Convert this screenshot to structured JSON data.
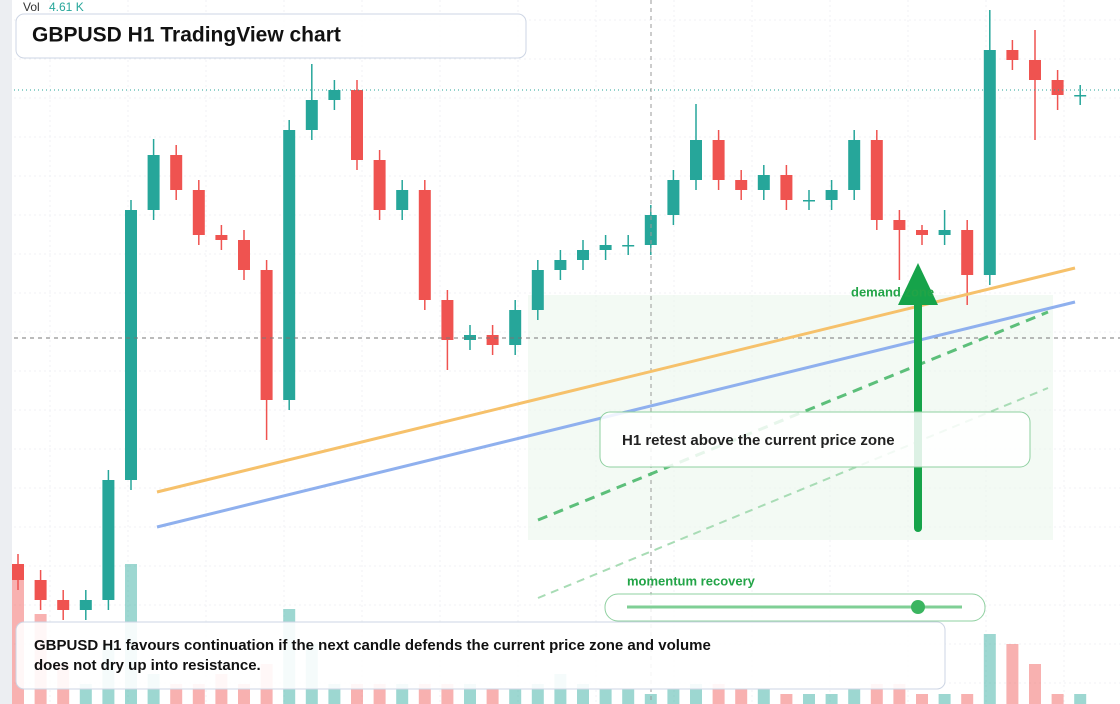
{
  "chart_data": {
    "type": "candlestick",
    "title": "GBPUSD H1 TradingView chart",
    "volume_label": "Vol",
    "volume_value": "4.61 K",
    "annotations": [
      "demand zone",
      "H1 retest above the current price zone",
      "momentum recovery",
      "GBPUSD H1 favours continuation if the next candle defends the current price zone and volume does not dry up into resistance."
    ],
    "up_color": "#26a69a",
    "down_color": "#ef5350",
    "ylim": [
      0,
      704
    ],
    "vlim": [
      0,
      704
    ],
    "open": [
      140,
      124,
      104,
      94,
      104,
      224,
      494,
      549,
      514,
      469,
      464,
      434,
      304,
      574,
      604,
      614,
      544,
      494,
      514,
      404,
      364,
      369,
      359,
      394,
      434,
      444,
      454,
      459,
      459,
      489,
      524,
      564,
      524,
      514,
      529,
      504,
      504,
      514,
      564,
      484,
      474,
      469,
      474,
      429,
      654,
      644,
      624,
      609
    ],
    "high": [
      150,
      134,
      114,
      114,
      234,
      504,
      565,
      559,
      524,
      479,
      474,
      444,
      584,
      640,
      624,
      624,
      554,
      524,
      524,
      414,
      379,
      379,
      404,
      444,
      454,
      464,
      469,
      469,
      499,
      534,
      600,
      574,
      534,
      539,
      539,
      514,
      524,
      574,
      574,
      494,
      479,
      494,
      484,
      694,
      664,
      674,
      634,
      619
    ],
    "low": [
      114,
      94,
      84,
      84,
      94,
      214,
      484,
      504,
      459,
      454,
      424,
      264,
      294,
      564,
      594,
      534,
      484,
      484,
      394,
      334,
      354,
      349,
      349,
      384,
      424,
      434,
      444,
      449,
      449,
      479,
      514,
      514,
      504,
      504,
      494,
      494,
      494,
      504,
      474,
      424,
      459,
      459,
      399,
      419,
      634,
      564,
      594,
      599
    ],
    "close": [
      124,
      104,
      94,
      104,
      224,
      494,
      549,
      514,
      469,
      464,
      434,
      304,
      574,
      604,
      614,
      544,
      494,
      514,
      404,
      364,
      369,
      359,
      394,
      434,
      444,
      454,
      459,
      459,
      489,
      524,
      564,
      524,
      514,
      529,
      504,
      504,
      514,
      564,
      484,
      474,
      469,
      474,
      429,
      654,
      644,
      624,
      609,
      609
    ],
    "volumes": [
      130,
      90,
      40,
      20,
      60,
      140,
      30,
      20,
      20,
      30,
      20,
      40,
      95,
      60,
      20,
      20,
      20,
      20,
      20,
      20,
      20,
      15,
      15,
      20,
      30,
      20,
      15,
      15,
      10,
      15,
      20,
      20,
      15,
      15,
      10,
      10,
      10,
      15,
      20,
      20,
      10,
      10,
      10,
      70,
      60,
      40,
      10,
      10
    ]
  }
}
